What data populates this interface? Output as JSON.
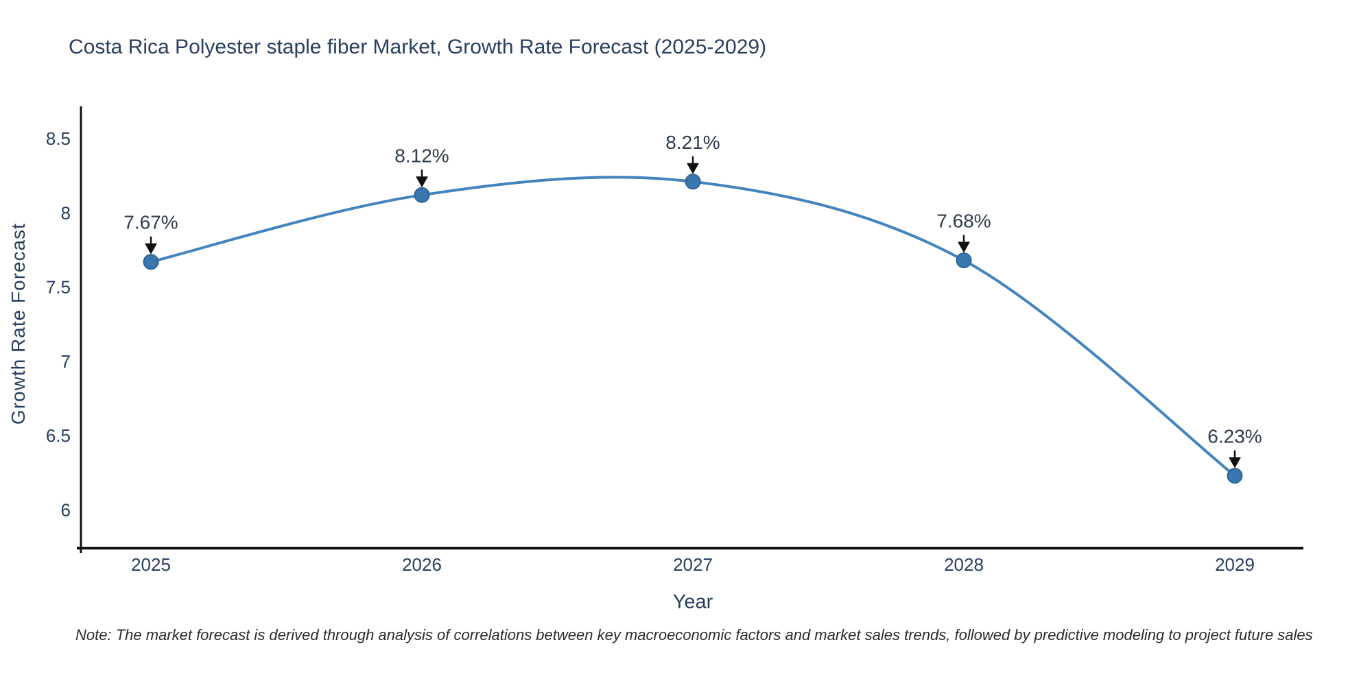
{
  "title": "Costa Rica Polyester staple fiber Market, Growth Rate Forecast (2025-2029)",
  "note": "Note: The market forecast is derived through analysis of correlations between key macroeconomic factors and market sales trends, followed by predictive modeling to project future sales",
  "chart_data": {
    "type": "line",
    "title": "Costa Rica Polyester staple fiber Market, Growth Rate Forecast (2025-2029)",
    "x": [
      2025,
      2026,
      2027,
      2028,
      2029
    ],
    "series": [
      {
        "name": "Growth Rate Forecast",
        "values": [
          7.67,
          8.12,
          8.21,
          7.68,
          6.23
        ]
      }
    ],
    "point_labels": [
      "7.67%",
      "8.12%",
      "8.21%",
      "7.68%",
      "6.23%"
    ],
    "xlabel": "Year",
    "ylabel": "Growth Rate Forecast",
    "x_ticks": [
      "2025",
      "2026",
      "2027",
      "2028",
      "2029"
    ],
    "y_ticks": [
      8.5,
      8,
      7.5,
      7,
      6.5,
      6
    ],
    "ylim": [
      5.74,
      8.72
    ],
    "grid": false,
    "legend": "none",
    "line_shape": "spline",
    "marker_style": "circle",
    "annotations": "value labels with black arrows pointing to each point",
    "colors": {
      "line": "#4384be",
      "marker": "#3978ae",
      "marker_edge": "#2c6396",
      "text": "#2a3f5f",
      "annotation_text": "#2f3b4c",
      "axis": "#111111",
      "note_text": "#2b2b2b",
      "background": "#ffffff"
    }
  }
}
